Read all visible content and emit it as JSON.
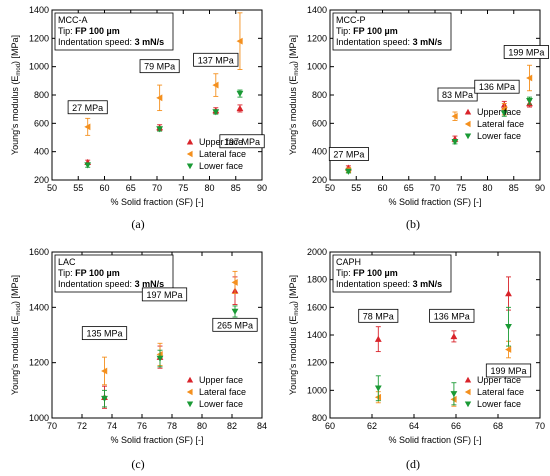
{
  "legend_entries": [
    "Upper face",
    "Lateral face",
    "Lower face"
  ],
  "colors": {
    "upper": "#d9232a",
    "lateral": "#f4901e",
    "lower": "#1a9a35"
  },
  "chart_data": [
    {
      "type": "scatter",
      "panel_label": "(a)",
      "info_box": {
        "material": "MCC-A",
        "tip_prefix": "Tip: ",
        "tip_value": "FP 100 µm",
        "speed_prefix": "Indentation speed: ",
        "speed_value": "3 mN/s"
      },
      "xlabel": "% Solid fraction (SF) [-]",
      "ylabel": "Young's modulus (E",
      "ylabel_sub": "mod",
      "ylabel_tail": ") [MPa]",
      "xlim": [
        50,
        90
      ],
      "xticks": [
        50,
        55,
        60,
        65,
        70,
        75,
        80,
        85,
        90
      ],
      "ylim": [
        200,
        1400
      ],
      "yticks": [
        200,
        400,
        600,
        800,
        1000,
        1200,
        1400
      ],
      "legend_position": "bottom-right",
      "series": [
        {
          "name": "Upper face",
          "key": "upper",
          "points": [
            {
              "x": 56.8,
              "y": 325,
              "err": 15
            },
            {
              "x": 70.5,
              "y": 570,
              "err": 20
            },
            {
              "x": 81.2,
              "y": 690,
              "err": 20
            },
            {
              "x": 85.8,
              "y": 705,
              "err": 25
            }
          ]
        },
        {
          "name": "Lateral face",
          "key": "lateral",
          "points": [
            {
              "x": 56.8,
              "y": 575,
              "err": 60
            },
            {
              "x": 70.5,
              "y": 780,
              "err": 90
            },
            {
              "x": 81.2,
              "y": 870,
              "err": 80
            },
            {
              "x": 85.8,
              "y": 1180,
              "err": 200
            }
          ]
        },
        {
          "name": "Lower face",
          "key": "lower",
          "points": [
            {
              "x": 56.8,
              "y": 305,
              "err": 15
            },
            {
              "x": 70.5,
              "y": 560,
              "err": 15
            },
            {
              "x": 81.2,
              "y": 680,
              "err": 15
            },
            {
              "x": 85.8,
              "y": 810,
              "err": 25
            }
          ]
        }
      ],
      "annotations": [
        {
          "text": "27 MPa",
          "x": 56.8,
          "y": 710
        },
        {
          "text": "79 MPa",
          "x": 70.5,
          "y": 1000
        },
        {
          "text": "137 MPa",
          "x": 81.2,
          "y": 1045
        },
        {
          "text": "197 MPa",
          "x": 86.2,
          "y": 470
        }
      ]
    },
    {
      "type": "scatter",
      "panel_label": "(b)",
      "info_box": {
        "material": "MCC-P",
        "tip_prefix": "Tip: ",
        "tip_value": "FP 100 µm",
        "speed_prefix": "Indentation speed: ",
        "speed_value": "3 mN/s"
      },
      "xlabel": "% Solid fraction (SF) [-]",
      "ylabel": "Young's modulus (E",
      "ylabel_sub": "mod",
      "ylabel_tail": ") [MPa]",
      "xlim": [
        50,
        90
      ],
      "xticks": [
        50,
        55,
        60,
        65,
        70,
        75,
        80,
        85,
        90
      ],
      "ylim": [
        200,
        1400
      ],
      "yticks": [
        200,
        400,
        600,
        800,
        1000,
        1200,
        1400
      ],
      "legend_position": "right",
      "series": [
        {
          "name": "Upper face",
          "key": "upper",
          "points": [
            {
              "x": 53.5,
              "y": 285,
              "err": 15
            },
            {
              "x": 73.8,
              "y": 490,
              "err": 20
            },
            {
              "x": 83.2,
              "y": 730,
              "err": 25
            },
            {
              "x": 88.0,
              "y": 740,
              "err": 25
            }
          ]
        },
        {
          "name": "Lateral face",
          "key": "lateral",
          "points": [
            {
              "x": 53.5,
              "y": 270,
              "err": 15
            },
            {
              "x": 73.8,
              "y": 650,
              "err": 30
            },
            {
              "x": 83.2,
              "y": 700,
              "err": 40
            },
            {
              "x": 88.0,
              "y": 920,
              "err": 90
            }
          ]
        },
        {
          "name": "Lower face",
          "key": "lower",
          "points": [
            {
              "x": 53.5,
              "y": 260,
              "err": 10
            },
            {
              "x": 73.8,
              "y": 470,
              "err": 15
            },
            {
              "x": 83.2,
              "y": 670,
              "err": 20
            },
            {
              "x": 88.0,
              "y": 760,
              "err": 25
            }
          ]
        }
      ],
      "annotations": [
        {
          "text": "27 MPa",
          "x": 53.6,
          "y": 380
        },
        {
          "text": "83 MPa",
          "x": 74.3,
          "y": 800
        },
        {
          "text": "136 MPa",
          "x": 81.8,
          "y": 855
        },
        {
          "text": "199 MPa",
          "x": 87.4,
          "y": 1100
        }
      ]
    },
    {
      "type": "scatter",
      "panel_label": "(c)",
      "info_box": {
        "material": "LAC",
        "tip_prefix": "Tip: ",
        "tip_value": "FP 100 µm",
        "speed_prefix": "Indentation speed: ",
        "speed_value": "3 mN/s"
      },
      "xlabel": "% Solid fraction (SF) [-]",
      "ylabel": "Young's modulus (E",
      "ylabel_sub": "mod",
      "ylabel_tail": ") [MPa]",
      "xlim": [
        70,
        84
      ],
      "xticks": [
        70,
        72,
        74,
        76,
        78,
        80,
        82,
        84
      ],
      "ylim": [
        1000,
        1600
      ],
      "yticks": [
        1000,
        1200,
        1400,
        1600
      ],
      "legend_position": "bottom-right",
      "series": [
        {
          "name": "Upper face",
          "key": "upper",
          "points": [
            {
              "x": 73.5,
              "y": 1075,
              "err": 40
            },
            {
              "x": 77.2,
              "y": 1220,
              "err": 40
            },
            {
              "x": 82.2,
              "y": 1460,
              "err": 50
            }
          ]
        },
        {
          "name": "Lateral face",
          "key": "lateral",
          "points": [
            {
              "x": 73.5,
              "y": 1170,
              "err": 50
            },
            {
              "x": 77.2,
              "y": 1230,
              "err": 40
            },
            {
              "x": 82.2,
              "y": 1490,
              "err": 40
            }
          ]
        },
        {
          "name": "Lower face",
          "key": "lower",
          "points": [
            {
              "x": 73.5,
              "y": 1070,
              "err": 30
            },
            {
              "x": 77.2,
              "y": 1215,
              "err": 30
            },
            {
              "x": 82.2,
              "y": 1385,
              "err": 20
            }
          ]
        }
      ],
      "annotations": [
        {
          "text": "135 MPa",
          "x": 73.5,
          "y": 1305
        },
        {
          "text": "197 MPa",
          "x": 77.5,
          "y": 1445
        },
        {
          "text": "265 MPa",
          "x": 82.2,
          "y": 1335
        }
      ]
    },
    {
      "type": "scatter",
      "panel_label": "(d)",
      "info_box": {
        "material": "CAPH",
        "tip_prefix": "Tip: ",
        "tip_value": "FP 100 µm",
        "speed_prefix": "Indentation speed: ",
        "speed_value": "3 mN/s"
      },
      "xlabel": "% Solid fraction (SF) [-]",
      "ylabel": "Young's modulus (E",
      "ylabel_sub": "mod",
      "ylabel_tail": ") [MPa]",
      "xlim": [
        60,
        70
      ],
      "xticks": [
        60,
        62,
        64,
        66,
        68,
        70
      ],
      "ylim": [
        800,
        2000
      ],
      "yticks": [
        800,
        1000,
        1200,
        1400,
        1600,
        1800,
        2000
      ],
      "legend_position": "bottom-right",
      "series": [
        {
          "name": "Upper face",
          "key": "upper",
          "points": [
            {
              "x": 62.3,
              "y": 1370,
              "err": 90
            },
            {
              "x": 65.9,
              "y": 1390,
              "err": 40
            },
            {
              "x": 68.5,
              "y": 1700,
              "err": 120
            }
          ]
        },
        {
          "name": "Lateral face",
          "key": "lateral",
          "points": [
            {
              "x": 62.3,
              "y": 950,
              "err": 40
            },
            {
              "x": 65.9,
              "y": 935,
              "err": 50
            },
            {
              "x": 68.5,
              "y": 1295,
              "err": 60
            }
          ]
        },
        {
          "name": "Lower face",
          "key": "lower",
          "points": [
            {
              "x": 62.3,
              "y": 1015,
              "err": 90
            },
            {
              "x": 65.9,
              "y": 975,
              "err": 80
            },
            {
              "x": 68.5,
              "y": 1460,
              "err": 140
            }
          ]
        }
      ],
      "annotations": [
        {
          "text": "78 MPa",
          "x": 62.3,
          "y": 1535
        },
        {
          "text": "136 MPa",
          "x": 65.8,
          "y": 1535
        },
        {
          "text": "199 MPa",
          "x": 68.5,
          "y": 1140
        }
      ]
    }
  ]
}
